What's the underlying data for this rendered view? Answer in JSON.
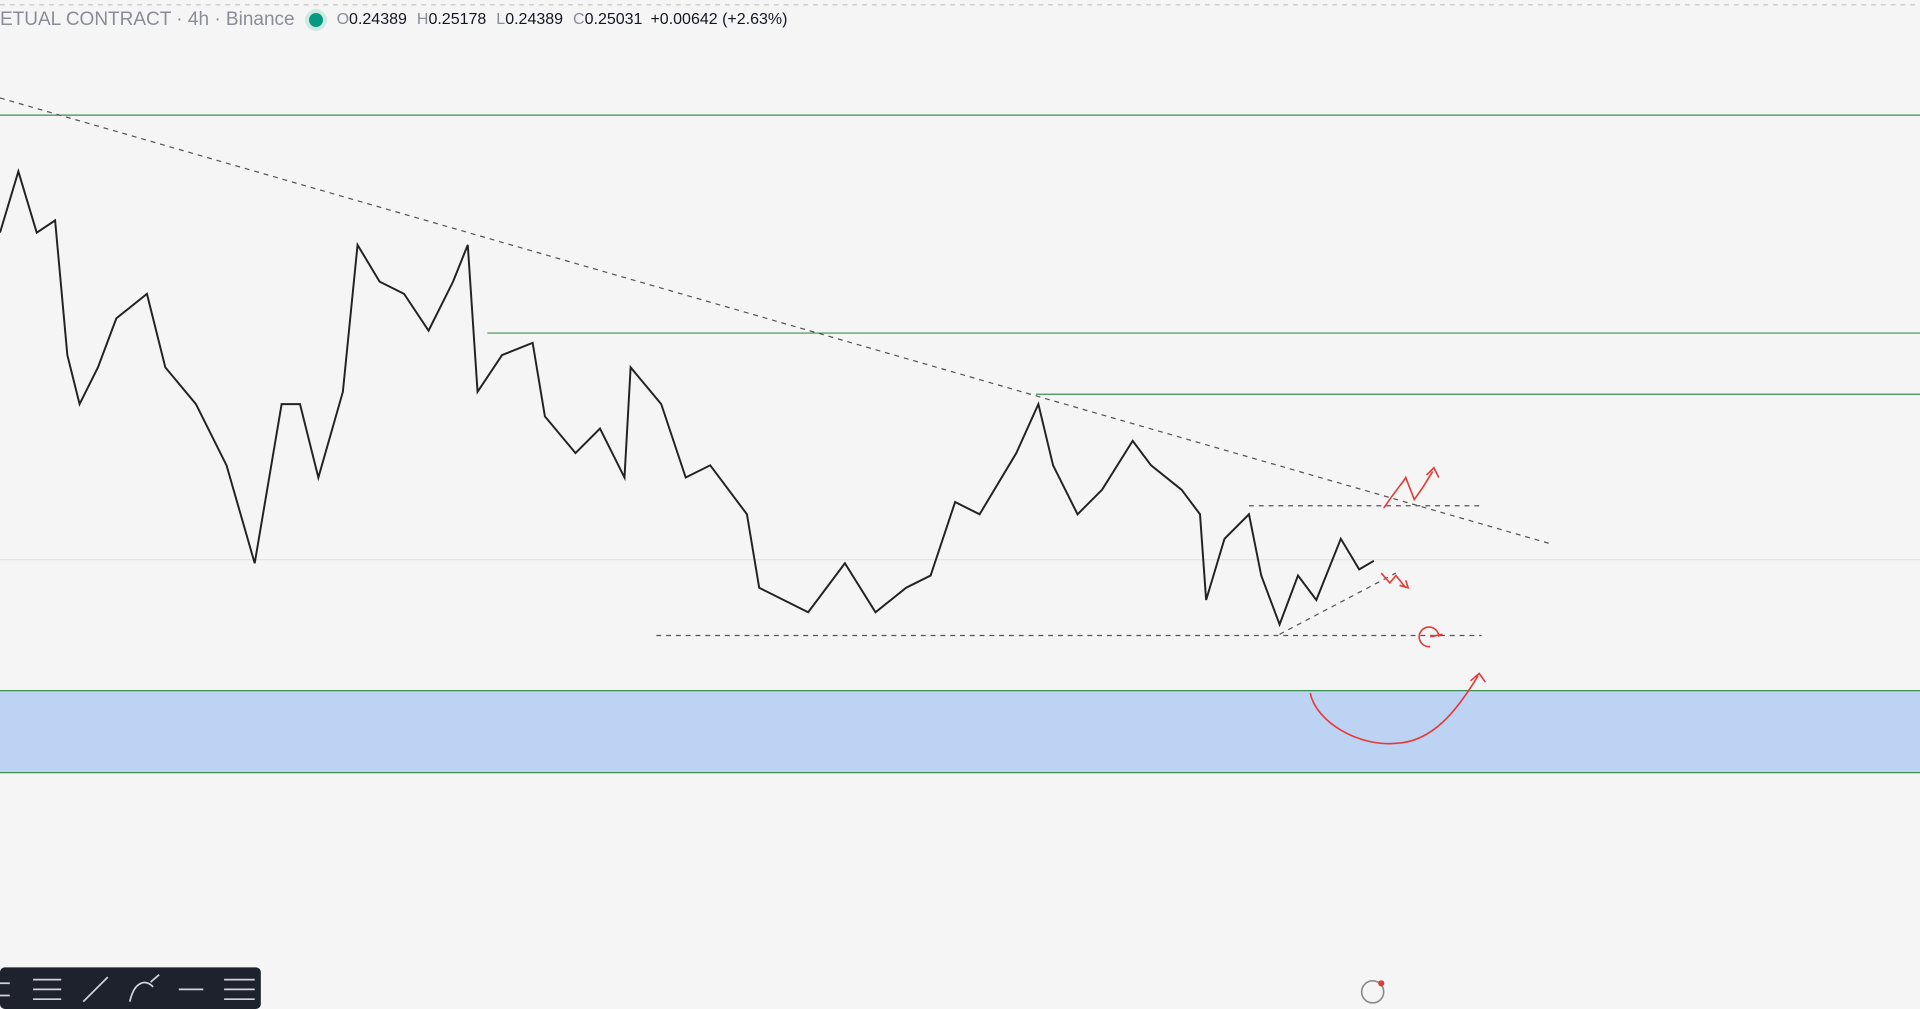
{
  "header": {
    "title": "ETUAL CONTRACT · 4h · Binance",
    "ohlc": [
      {
        "label": "O",
        "value": "0.24389"
      },
      {
        "label": "H",
        "value": "0.25178"
      },
      {
        "label": "L",
        "value": "0.24389"
      },
      {
        "label": "C",
        "value": "0.25031"
      }
    ],
    "change": "+0.00642 (+2.63%)"
  }
}
